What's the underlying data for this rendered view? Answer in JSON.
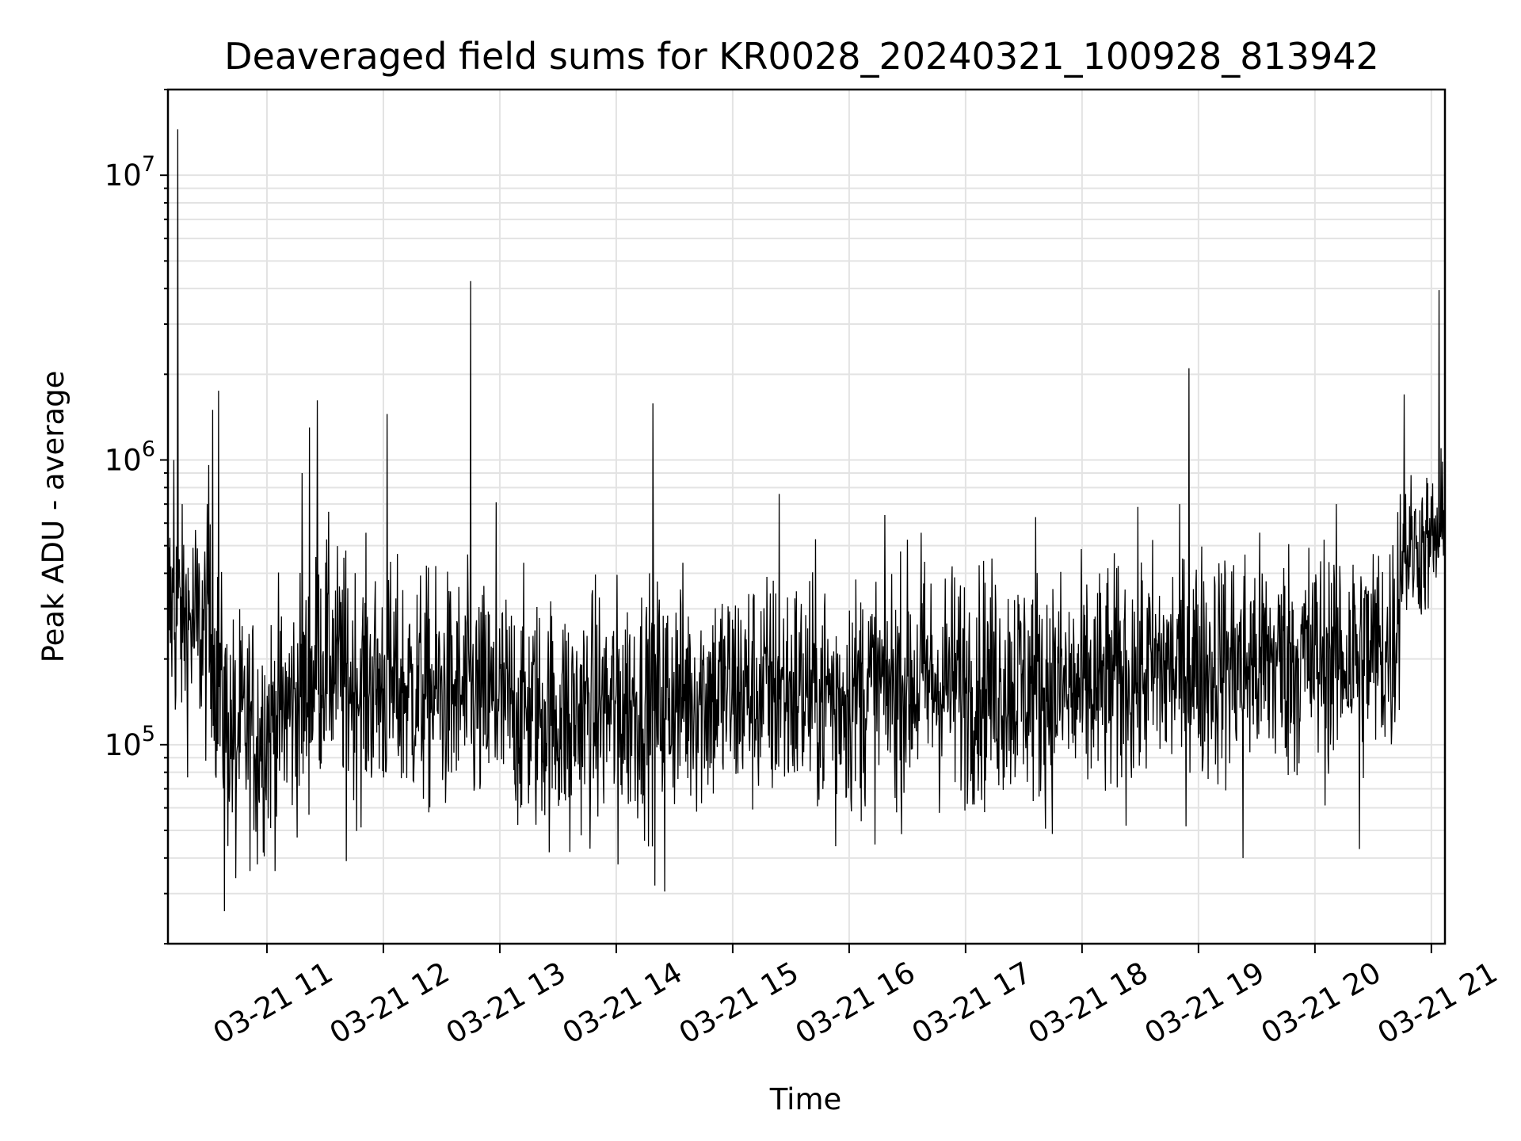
{
  "chart_data": {
    "type": "line",
    "title": "Deaveraged field sums for KR0028_20240321_100928_813942",
    "xlabel": "Time",
    "ylabel": "Peak ADU - average",
    "yscale": "log",
    "ylim": [
      20000,
      20000000
    ],
    "xlim": [
      "2024-03-21 10:09",
      "2024-03-21 21:07"
    ],
    "grid": true,
    "grid_minor_y": true,
    "line_color": "#000000",
    "y_ticks": [
      {
        "value": 100000,
        "mantissa": "10",
        "exp": "5"
      },
      {
        "value": 1000000,
        "mantissa": "10",
        "exp": "6"
      },
      {
        "value": 10000000,
        "mantissa": "10",
        "exp": "7"
      }
    ],
    "x_ticks": [
      {
        "value": "2024-03-21 11:00",
        "label": "03-21 11"
      },
      {
        "value": "2024-03-21 12:00",
        "label": "03-21 12"
      },
      {
        "value": "2024-03-21 13:00",
        "label": "03-21 13"
      },
      {
        "value": "2024-03-21 14:00",
        "label": "03-21 14"
      },
      {
        "value": "2024-03-21 15:00",
        "label": "03-21 15"
      },
      {
        "value": "2024-03-21 16:00",
        "label": "03-21 16"
      },
      {
        "value": "2024-03-21 17:00",
        "label": "03-21 17"
      },
      {
        "value": "2024-03-21 18:00",
        "label": "03-21 18"
      },
      {
        "value": "2024-03-21 19:00",
        "label": "03-21 19"
      },
      {
        "value": "2024-03-21 20:00",
        "label": "03-21 20"
      },
      {
        "value": "2024-03-21 21:00",
        "label": "03-21 21"
      }
    ],
    "baseline": [
      {
        "x": "2024-03-21 10:09",
        "y": 300000
      },
      {
        "x": "2024-03-21 10:30",
        "y": 240000
      },
      {
        "x": "2024-03-21 10:40",
        "y": 110000
      },
      {
        "x": "2024-03-21 11:00",
        "y": 115000
      },
      {
        "x": "2024-03-21 11:20",
        "y": 150000
      },
      {
        "x": "2024-03-21 11:30",
        "y": 210000
      },
      {
        "x": "2024-03-21 11:45",
        "y": 165000
      },
      {
        "x": "2024-03-21 12:30",
        "y": 150000
      },
      {
        "x": "2024-03-21 13:30",
        "y": 125000
      },
      {
        "x": "2024-03-21 14:30",
        "y": 150000
      },
      {
        "x": "2024-03-21 15:30",
        "y": 155000
      },
      {
        "x": "2024-03-21 16:00",
        "y": 150000
      },
      {
        "x": "2024-03-21 16:30",
        "y": 165000
      },
      {
        "x": "2024-03-21 17:30",
        "y": 165000
      },
      {
        "x": "2024-03-21 18:00",
        "y": 150000
      },
      {
        "x": "2024-03-21 18:30",
        "y": 180000
      },
      {
        "x": "2024-03-21 19:00",
        "y": 190000
      },
      {
        "x": "2024-03-21 19:30",
        "y": 195000
      },
      {
        "x": "2024-03-21 20:00",
        "y": 200000
      },
      {
        "x": "2024-03-21 20:40",
        "y": 215000
      },
      {
        "x": "2024-03-21 20:45",
        "y": 480000
      },
      {
        "x": "2024-03-21 21:07",
        "y": 520000
      }
    ],
    "peaks": [
      {
        "x": "2024-03-21 10:14",
        "y": 14500000
      },
      {
        "x": "2024-03-21 10:12",
        "y": 1000000
      },
      {
        "x": "2024-03-21 10:32",
        "y": 1500000
      },
      {
        "x": "2024-03-21 10:35",
        "y": 1750000
      },
      {
        "x": "2024-03-21 10:30",
        "y": 960000
      },
      {
        "x": "2024-03-21 11:22",
        "y": 1300000
      },
      {
        "x": "2024-03-21 11:26",
        "y": 1620000
      },
      {
        "x": "2024-03-21 11:18",
        "y": 900000
      },
      {
        "x": "2024-03-21 12:02",
        "y": 1450000
      },
      {
        "x": "2024-03-21 12:45",
        "y": 4250000
      },
      {
        "x": "2024-03-21 12:58",
        "y": 710000
      },
      {
        "x": "2024-03-21 14:19",
        "y": 1580000
      },
      {
        "x": "2024-03-21 15:24",
        "y": 760000
      },
      {
        "x": "2024-03-21 16:37",
        "y": 555000
      },
      {
        "x": "2024-03-21 17:36",
        "y": 630000
      },
      {
        "x": "2024-03-21 18:55",
        "y": 2100000
      },
      {
        "x": "2024-03-21 20:46",
        "y": 1700000
      },
      {
        "x": "2024-03-21 21:04",
        "y": 3950000
      },
      {
        "x": "2024-03-21 21:05",
        "y": 1100000
      }
    ],
    "dips": [
      {
        "x": "2024-03-21 10:38",
        "y": 26000
      },
      {
        "x": "2024-03-21 10:44",
        "y": 34000
      },
      {
        "x": "2024-03-21 10:55",
        "y": 38000
      },
      {
        "x": "2024-03-21 11:41",
        "y": 39000
      },
      {
        "x": "2024-03-21 13:36",
        "y": 42000
      },
      {
        "x": "2024-03-21 14:01",
        "y": 38000
      },
      {
        "x": "2024-03-21 14:20",
        "y": 32000
      },
      {
        "x": "2024-03-21 14:25",
        "y": 30500
      },
      {
        "x": "2024-03-21 15:53",
        "y": 44000
      },
      {
        "x": "2024-03-21 19:23",
        "y": 40000
      },
      {
        "x": "2024-03-21 20:23",
        "y": 43000
      }
    ]
  }
}
